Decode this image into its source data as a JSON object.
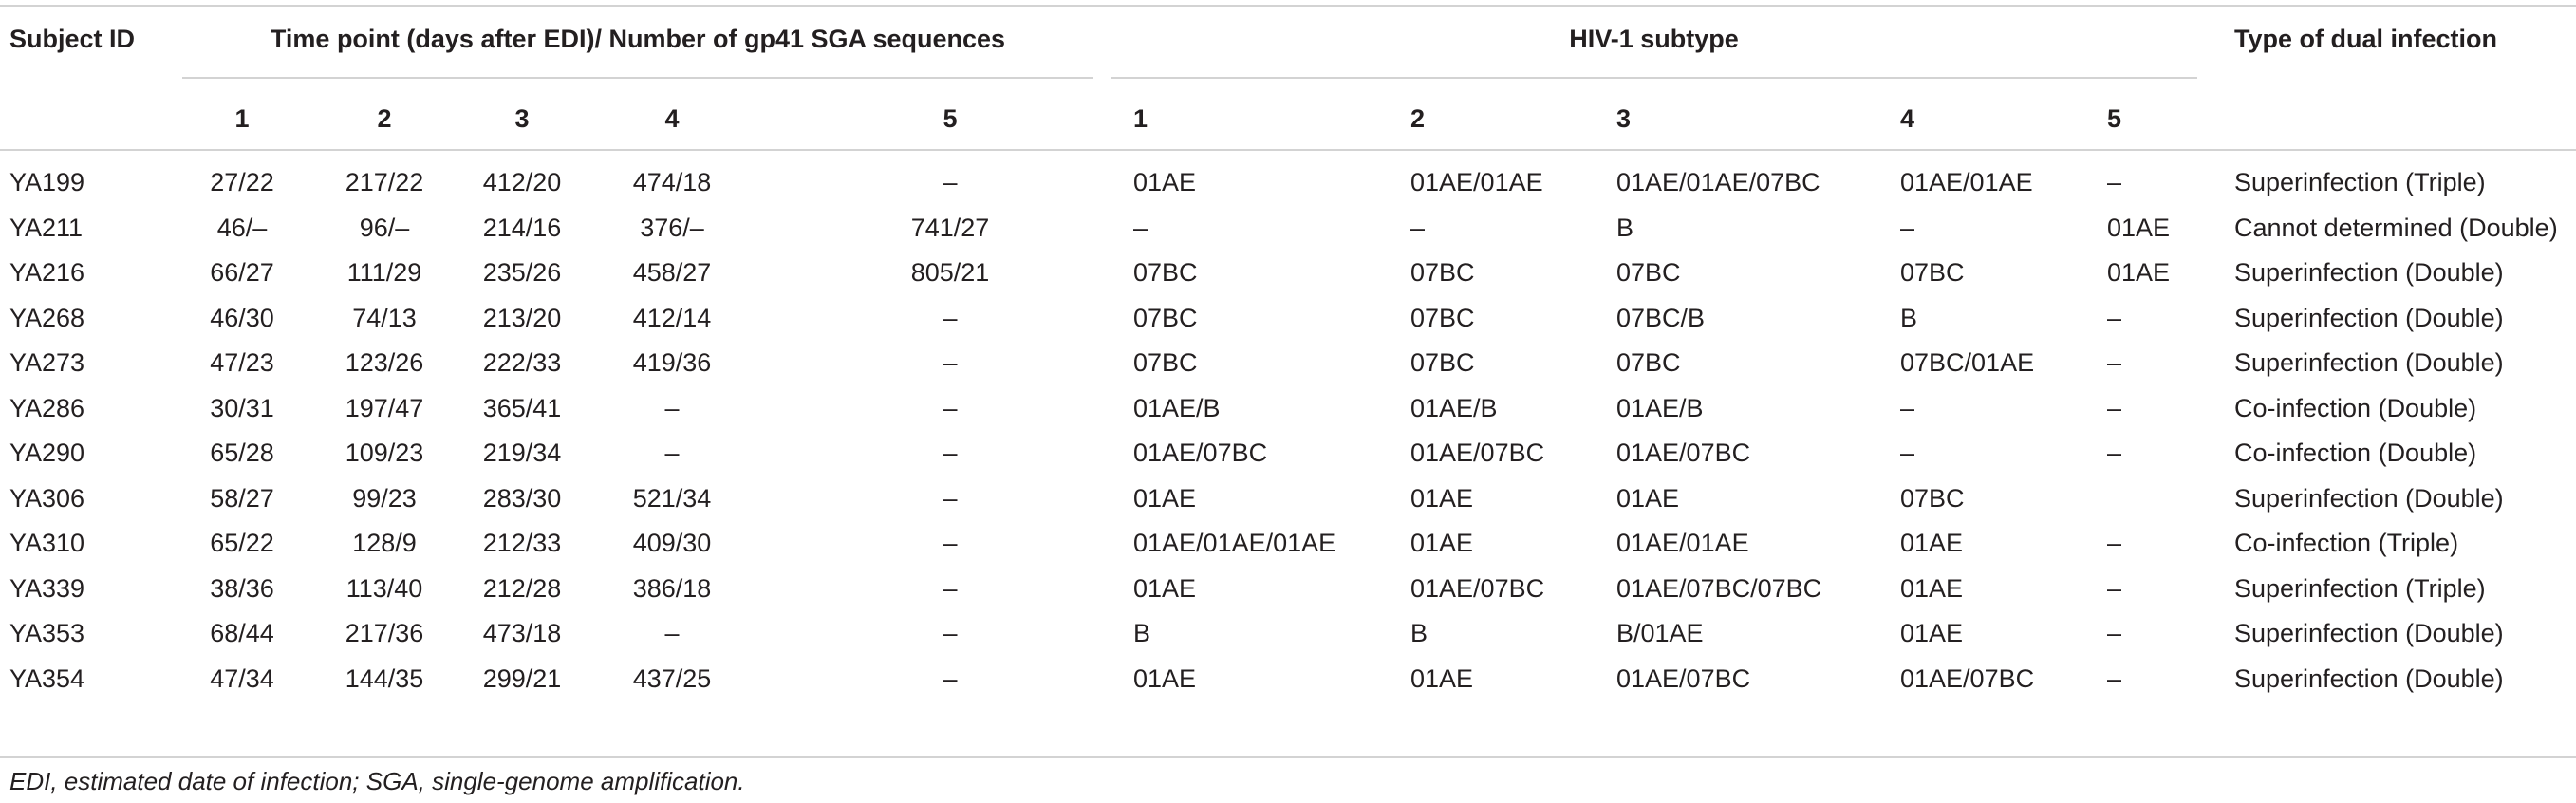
{
  "table": {
    "headers": {
      "subject_id": "Subject ID",
      "time_point_group": "Time point (days after EDI)/ Number of gp41 SGA sequences",
      "subtype_group": "HIV-1 subtype",
      "dual_infection": "Type of dual infection",
      "time_points": [
        "1",
        "2",
        "3",
        "4",
        "5"
      ],
      "subtype_points": [
        "1",
        "2",
        "3",
        "4",
        "5"
      ]
    },
    "rows": [
      {
        "id": "YA199",
        "tp": [
          "27/22",
          "217/22",
          "412/20",
          "474/18",
          "–"
        ],
        "st": [
          "01AE",
          "01AE/01AE",
          "01AE/01AE/07BC",
          "01AE/01AE",
          "–"
        ],
        "type": "Superinfection (Triple)"
      },
      {
        "id": "YA211",
        "tp": [
          "46/–",
          "96/–",
          "214/16",
          "376/–",
          "741/27"
        ],
        "st": [
          "–",
          "–",
          "B",
          "–",
          "01AE"
        ],
        "type": "Cannot determined (Double)"
      },
      {
        "id": "YA216",
        "tp": [
          "66/27",
          "111/29",
          "235/26",
          "458/27",
          "805/21"
        ],
        "st": [
          "07BC",
          "07BC",
          "07BC",
          "07BC",
          "01AE"
        ],
        "type": "Superinfection (Double)"
      },
      {
        "id": "YA268",
        "tp": [
          "46/30",
          "74/13",
          "213/20",
          "412/14",
          "–"
        ],
        "st": [
          "07BC",
          "07BC",
          "07BC/B",
          "B",
          "–"
        ],
        "type": "Superinfection (Double)"
      },
      {
        "id": "YA273",
        "tp": [
          "47/23",
          "123/26",
          "222/33",
          "419/36",
          "–"
        ],
        "st": [
          "07BC",
          "07BC",
          "07BC",
          "07BC/01AE",
          "–"
        ],
        "type": "Superinfection (Double)"
      },
      {
        "id": "YA286",
        "tp": [
          "30/31",
          "197/47",
          "365/41",
          "–",
          "–"
        ],
        "st": [
          "01AE/B",
          "01AE/B",
          "01AE/B",
          "–",
          "–"
        ],
        "type": "Co-infection (Double)"
      },
      {
        "id": "YA290",
        "tp": [
          "65/28",
          "109/23",
          "219/34",
          "–",
          "–"
        ],
        "st": [
          "01AE/07BC",
          "01AE/07BC",
          "01AE/07BC",
          "–",
          "–"
        ],
        "type": "Co-infection (Double)"
      },
      {
        "id": "YA306",
        "tp": [
          "58/27",
          "99/23",
          "283/30",
          "521/34",
          "–"
        ],
        "st": [
          "01AE",
          "01AE",
          "01AE",
          "07BC",
          ""
        ],
        "type": "Superinfection (Double)"
      },
      {
        "id": "YA310",
        "tp": [
          "65/22",
          "128/9",
          "212/33",
          "409/30",
          "–"
        ],
        "st": [
          "01AE/01AE/01AE",
          "01AE",
          "01AE/01AE",
          "01AE",
          "–"
        ],
        "type": "Co-infection (Triple)"
      },
      {
        "id": "YA339",
        "tp": [
          "38/36",
          "113/40",
          "212/28",
          "386/18",
          "–"
        ],
        "st": [
          "01AE",
          "01AE/07BC",
          "01AE/07BC/07BC",
          "01AE",
          "–"
        ],
        "type": "Superinfection (Triple)"
      },
      {
        "id": "YA353",
        "tp": [
          "68/44",
          "217/36",
          "473/18",
          "–",
          "–"
        ],
        "st": [
          "B",
          "B",
          "B/01AE",
          "01AE",
          "–"
        ],
        "type": "Superinfection (Double)"
      },
      {
        "id": "YA354",
        "tp": [
          "47/34",
          "144/35",
          "299/21",
          "437/25",
          "–"
        ],
        "st": [
          "01AE",
          "01AE",
          "01AE/07BC",
          "01AE/07BC",
          "–"
        ],
        "type": "Superinfection (Double)"
      }
    ],
    "footnote": "EDI, estimated date of infection; SGA, single-genome amplification."
  }
}
